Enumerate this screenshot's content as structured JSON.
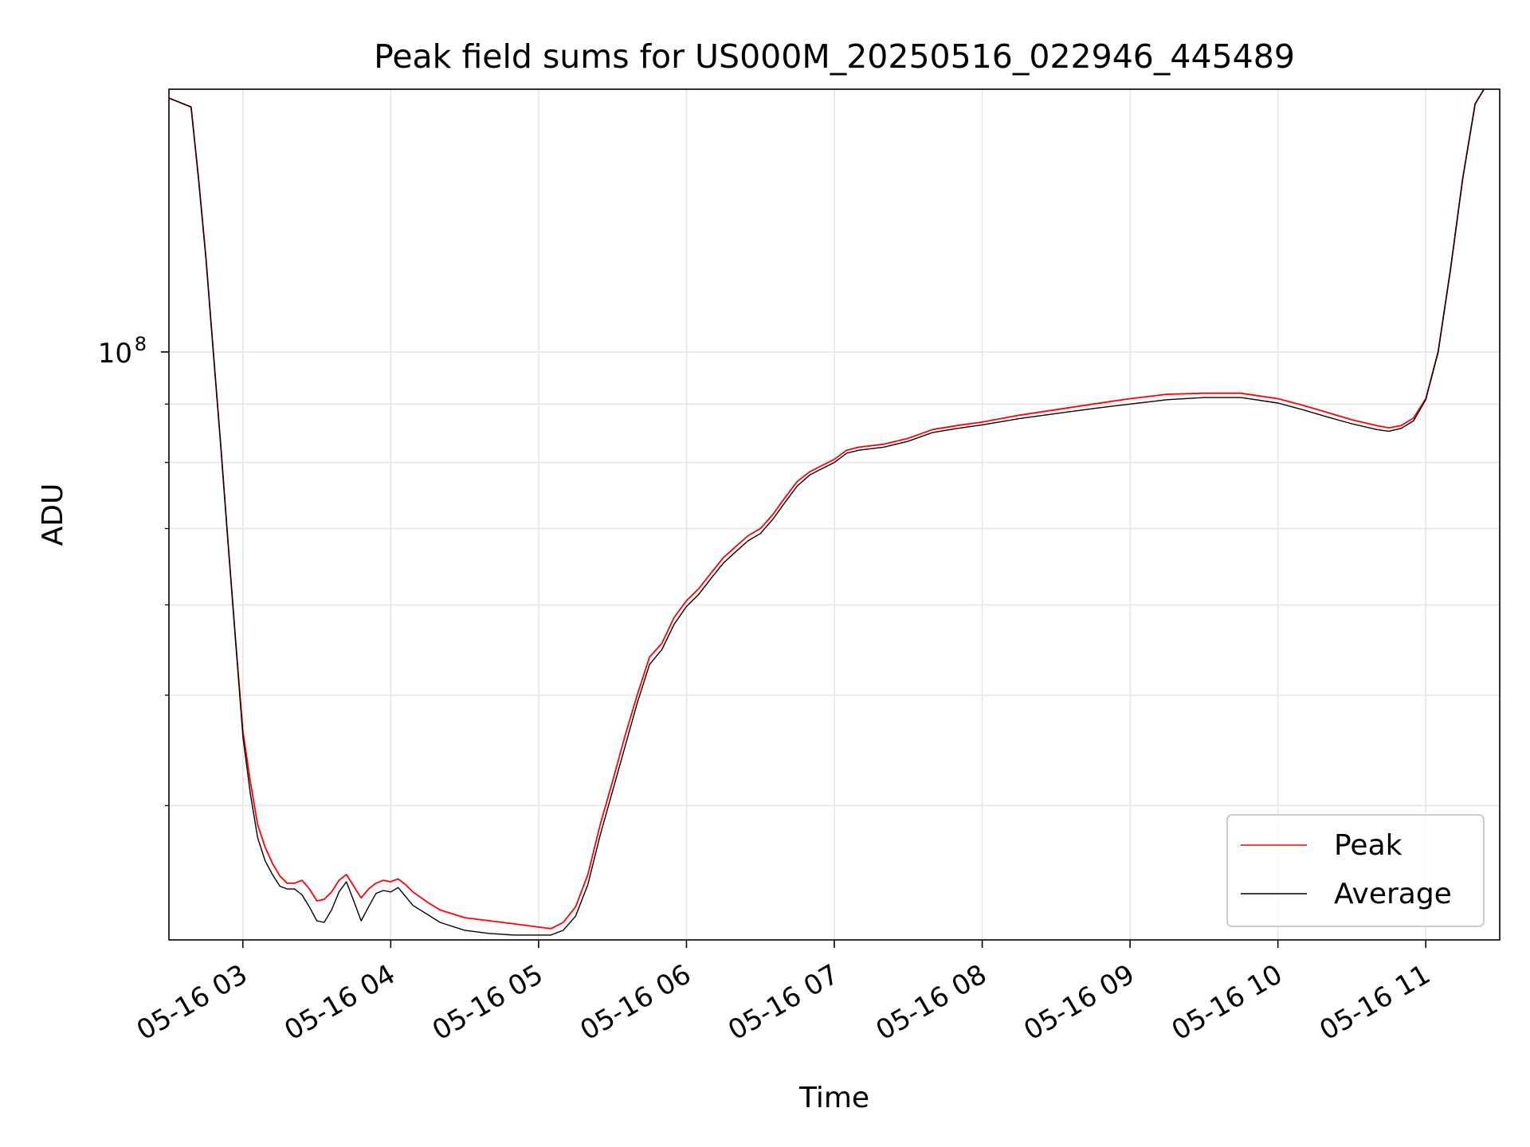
{
  "chart_data": {
    "type": "line",
    "title": "Peak field sums for US000M_20250516_022946_445489",
    "xlabel": "Time",
    "ylabel": "ADU",
    "yscale": "log",
    "grid": true,
    "legend_position": "lower right",
    "xlim": [
      "05-16 02:30",
      "05-16 11:30"
    ],
    "ylim": [
      30500000,
      170000000
    ],
    "x_ticks": [
      "05-16 03",
      "05-16 04",
      "05-16 05",
      "05-16 06",
      "05-16 07",
      "05-16 08",
      "05-16 09",
      "05-16 10",
      "05-16 11"
    ],
    "y_ticks": [
      {
        "value": 100000000,
        "base": "10",
        "exp": "8"
      }
    ],
    "series": [
      {
        "name": "Peak",
        "color": "#ff0000",
        "x": [
          "05-16 02:30",
          "05-16 02:39",
          "05-16 02:42",
          "05-16 02:45",
          "05-16 02:48",
          "05-16 02:51",
          "05-16 02:54",
          "05-16 02:57",
          "05-16 03:00",
          "05-16 03:03",
          "05-16 03:06",
          "05-16 03:09",
          "05-16 03:12",
          "05-16 03:15",
          "05-16 03:18",
          "05-16 03:21",
          "05-16 03:24",
          "05-16 03:27",
          "05-16 03:30",
          "05-16 03:33",
          "05-16 03:36",
          "05-16 03:39",
          "05-16 03:42",
          "05-16 03:45",
          "05-16 03:48",
          "05-16 03:51",
          "05-16 03:54",
          "05-16 03:57",
          "05-16 04:00",
          "05-16 04:03",
          "05-16 04:06",
          "05-16 04:09",
          "05-16 04:15",
          "05-16 04:20",
          "05-16 04:30",
          "05-16 04:40",
          "05-16 04:50",
          "05-16 05:00",
          "05-16 05:05",
          "05-16 05:10",
          "05-16 05:15",
          "05-16 05:20",
          "05-16 05:25",
          "05-16 05:30",
          "05-16 05:35",
          "05-16 05:40",
          "05-16 05:45",
          "05-16 05:50",
          "05-16 05:55",
          "05-16 06:00",
          "05-16 06:05",
          "05-16 06:10",
          "05-16 06:15",
          "05-16 06:20",
          "05-16 06:25",
          "05-16 06:30",
          "05-16 06:35",
          "05-16 06:40",
          "05-16 06:45",
          "05-16 06:50",
          "05-16 06:55",
          "05-16 07:00",
          "05-16 07:05",
          "05-16 07:10",
          "05-16 07:20",
          "05-16 07:30",
          "05-16 07:40",
          "05-16 07:50",
          "05-16 08:00",
          "05-16 08:15",
          "05-16 08:30",
          "05-16 08:45",
          "05-16 09:00",
          "05-16 09:15",
          "05-16 09:30",
          "05-16 09:45",
          "05-16 10:00",
          "05-16 10:10",
          "05-16 10:20",
          "05-16 10:30",
          "05-16 10:40",
          "05-16 10:45",
          "05-16 10:50",
          "05-16 10:55",
          "05-16 11:00",
          "05-16 11:05",
          "05-16 11:10",
          "05-16 11:15",
          "05-16 11:20",
          "05-16 11:25",
          "05-16 11:30"
        ],
        "y": [
          167000000,
          164000000,
          142000000,
          121000000,
          100000000,
          83000000,
          68000000,
          56000000,
          46500000,
          42000000,
          38500000,
          36800000,
          35600000,
          34700000,
          34200000,
          34200000,
          34400000,
          33800000,
          33000000,
          33100000,
          33600000,
          34400000,
          34800000,
          34000000,
          33200000,
          33800000,
          34200000,
          34400000,
          34300000,
          34500000,
          34100000,
          33600000,
          32900000,
          32400000,
          31900000,
          31700000,
          31500000,
          31300000,
          31200000,
          31600000,
          32600000,
          34800000,
          38500000,
          42000000,
          46000000,
          50000000,
          54000000,
          55500000,
          58500000,
          60500000,
          62000000,
          64000000,
          66000000,
          67500000,
          69000000,
          70000000,
          72000000,
          74500000,
          77000000,
          78500000,
          79500000,
          80500000,
          82000000,
          82500000,
          83000000,
          84000000,
          85500000,
          86200000,
          86800000,
          88000000,
          89000000,
          90000000,
          91000000,
          91800000,
          92000000,
          92000000,
          91000000,
          89800000,
          88500000,
          87200000,
          86200000,
          85800000,
          86200000,
          87500000,
          91000000,
          100000000,
          118000000,
          142000000,
          165000000,
          172000000,
          172000000
        ]
      },
      {
        "name": "Average",
        "color": "#000000",
        "x": [
          "05-16 02:30",
          "05-16 02:39",
          "05-16 02:42",
          "05-16 02:45",
          "05-16 02:48",
          "05-16 02:51",
          "05-16 02:54",
          "05-16 02:57",
          "05-16 03:00",
          "05-16 03:03",
          "05-16 03:06",
          "05-16 03:09",
          "05-16 03:12",
          "05-16 03:15",
          "05-16 03:18",
          "05-16 03:21",
          "05-16 03:24",
          "05-16 03:27",
          "05-16 03:30",
          "05-16 03:33",
          "05-16 03:36",
          "05-16 03:39",
          "05-16 03:42",
          "05-16 03:45",
          "05-16 03:48",
          "05-16 03:51",
          "05-16 03:54",
          "05-16 03:57",
          "05-16 04:00",
          "05-16 04:03",
          "05-16 04:06",
          "05-16 04:09",
          "05-16 04:15",
          "05-16 04:20",
          "05-16 04:30",
          "05-16 04:40",
          "05-16 04:50",
          "05-16 05:00",
          "05-16 05:05",
          "05-16 05:10",
          "05-16 05:15",
          "05-16 05:20",
          "05-16 05:25",
          "05-16 05:30",
          "05-16 05:35",
          "05-16 05:40",
          "05-16 05:45",
          "05-16 05:50",
          "05-16 05:55",
          "05-16 06:00",
          "05-16 06:05",
          "05-16 06:10",
          "05-16 06:15",
          "05-16 06:20",
          "05-16 06:25",
          "05-16 06:30",
          "05-16 06:35",
          "05-16 06:40",
          "05-16 06:45",
          "05-16 06:50",
          "05-16 06:55",
          "05-16 07:00",
          "05-16 07:05",
          "05-16 07:10",
          "05-16 07:20",
          "05-16 07:30",
          "05-16 07:40",
          "05-16 07:50",
          "05-16 08:00",
          "05-16 08:15",
          "05-16 08:30",
          "05-16 08:45",
          "05-16 09:00",
          "05-16 09:15",
          "05-16 09:30",
          "05-16 09:45",
          "05-16 10:00",
          "05-16 10:10",
          "05-16 10:20",
          "05-16 10:30",
          "05-16 10:40",
          "05-16 10:45",
          "05-16 10:50",
          "05-16 10:55",
          "05-16 11:00",
          "05-16 11:05",
          "05-16 11:10",
          "05-16 11:15",
          "05-16 11:20",
          "05-16 11:25",
          "05-16 11:30"
        ],
        "y": [
          167000000,
          164000000,
          142000000,
          121000000,
          100000000,
          83000000,
          68000000,
          56000000,
          46000000,
          41000000,
          37500000,
          35800000,
          34800000,
          34000000,
          33800000,
          33800000,
          33400000,
          32600000,
          31700000,
          31600000,
          32400000,
          33600000,
          34300000,
          33000000,
          31700000,
          32600000,
          33500000,
          33700000,
          33600000,
          33900000,
          33300000,
          32700000,
          32100000,
          31600000,
          31100000,
          30900000,
          30800000,
          30800000,
          30800000,
          31100000,
          32000000,
          34100000,
          37700000,
          41200000,
          45000000,
          49200000,
          53200000,
          54800000,
          57700000,
          59800000,
          61300000,
          63300000,
          65300000,
          66800000,
          68300000,
          69300000,
          71300000,
          73800000,
          76300000,
          78000000,
          79000000,
          80000000,
          81500000,
          82000000,
          82500000,
          83500000,
          85000000,
          85700000,
          86300000,
          87400000,
          88300000,
          89200000,
          90000000,
          90800000,
          91200000,
          91200000,
          90200000,
          89000000,
          87700000,
          86500000,
          85500000,
          85200000,
          85700000,
          87000000,
          90800000,
          100000000,
          118000000,
          142000000,
          165000000,
          172000000,
          172000000
        ]
      }
    ]
  }
}
